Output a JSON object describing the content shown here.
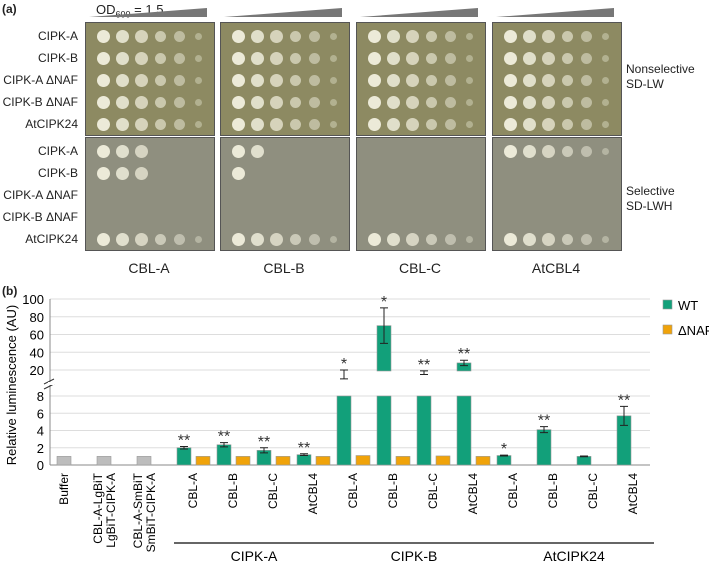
{
  "panel_a": {
    "label": "(a)",
    "od_label": "OD",
    "od_sub": "600",
    "od_value": " = 1.5",
    "strains": [
      "CIPK-A",
      "CIPK-B",
      "CIPK-A ΔNAF",
      "CIPK-B ΔNAF",
      "AtCIPK24"
    ],
    "plates": [
      "CBL-A",
      "CBL-B",
      "CBL-C",
      "AtCBL4"
    ],
    "media": [
      {
        "line1": "Nonselective",
        "line2": "SD-LW"
      },
      {
        "line1": "Selective",
        "line2": "SD-LWH"
      }
    ],
    "selective_growth_spots": [
      [
        3,
        2,
        0,
        6
      ],
      [
        3,
        1,
        0,
        0
      ],
      [
        0,
        0,
        0,
        0
      ],
      [
        0,
        0,
        0,
        0
      ],
      [
        6,
        6,
        6,
        6
      ]
    ]
  },
  "panel_b": {
    "label": "(b)"
  },
  "chart_data": {
    "type": "bar",
    "ylabel": "Relative luminescence (AU)",
    "y_ticks_lower": [
      "0",
      "2",
      "4",
      "6",
      "8"
    ],
    "y_ticks_upper": [
      "20",
      "40",
      "60",
      "80",
      "100"
    ],
    "ylim": [
      0,
      100
    ],
    "axis_break": [
      8,
      20
    ],
    "grid": true,
    "legend_position": "right",
    "colors": {
      "WT": "#12a07a",
      "dNAF": "#f0a30a",
      "control": "#bdbdbd"
    },
    "legend": [
      "WT",
      "ΔNAF"
    ],
    "controls": [
      {
        "label": "Buffer",
        "value": 1
      },
      {
        "label": "CBL-A-LgBiT LgBiT-CIPK-A",
        "line1": "CBL-A-LgBiT",
        "line2": "LgBiT-CIPK-A",
        "value": 1
      },
      {
        "label": "CBL-A-SmBiT SmBiT-CIPK-A",
        "line1": "CBL-A-SmBiT",
        "line2": "SmBiT-CIPK-A",
        "value": 1
      }
    ],
    "groups": [
      {
        "name": "CIPK-A",
        "categories": [
          "CBL-A",
          "CBL-B",
          "CBL-C",
          "AtCBL4"
        ],
        "WT": [
          2.0,
          2.35,
          1.7,
          1.2
        ],
        "WT_err": [
          0.15,
          0.25,
          0.3,
          0.1
        ],
        "dNAF": [
          1.0,
          1.0,
          1.0,
          1.0
        ],
        "stars": [
          "**",
          "**",
          "**",
          "**"
        ]
      },
      {
        "name": "CIPK-B",
        "categories": [
          "CBL-A",
          "CBL-B",
          "CBL-C",
          "AtCBL4"
        ],
        "WT": [
          15,
          70,
          17,
          28
        ],
        "WT_err": [
          5,
          20,
          2,
          3
        ],
        "dNAF": [
          1.1,
          1.0,
          1.05,
          1.0
        ],
        "stars": [
          "*",
          "*",
          "**",
          "**"
        ]
      },
      {
        "name": "AtCIPK24",
        "categories": [
          "CBL-A",
          "CBL-B",
          "CBL-C",
          "AtCBL4"
        ],
        "WT": [
          1.1,
          4.1,
          1.0,
          5.7
        ],
        "WT_err": [
          0.05,
          0.35,
          0.05,
          1.1
        ],
        "dNAF": [
          null,
          null,
          null,
          null
        ],
        "stars": [
          "*",
          "**",
          "",
          "**"
        ]
      }
    ]
  }
}
